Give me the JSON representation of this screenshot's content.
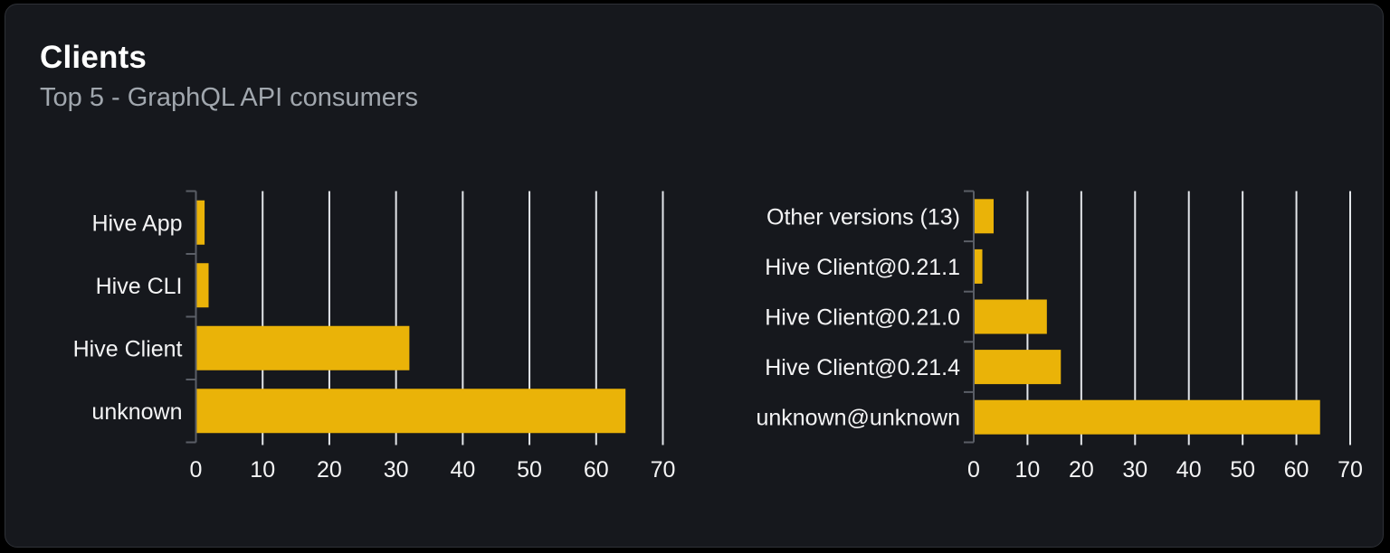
{
  "header": {
    "title": "Clients",
    "subtitle": "Top 5 - GraphQL API consumers"
  },
  "colors": {
    "bar": "#eab308",
    "grid": "#e3e6ea",
    "axis": "#5a5e66",
    "label": "#f4f4f5",
    "tick_label": "#f4f4f5",
    "title": "#ffffff",
    "subtitle": "#a1a7ae",
    "panel_bg": "#16181d",
    "panel_border": "#2e3137",
    "page_bg": "#000000"
  },
  "chart_data": [
    {
      "type": "bar",
      "orientation": "horizontal",
      "title": "",
      "categories": [
        "Hive App",
        "Hive CLI",
        "Hive Client",
        "unknown"
      ],
      "values": [
        1.3,
        1.9,
        32,
        64.4
      ],
      "xlabel": "",
      "ylabel": "",
      "xlim": [
        0,
        70
      ],
      "xticks": [
        0,
        10,
        20,
        30,
        40,
        50,
        60,
        70
      ],
      "grid": true,
      "legend": false
    },
    {
      "type": "bar",
      "orientation": "horizontal",
      "title": "",
      "categories": [
        "Other versions (13)",
        "Hive Client@0.21.1",
        "Hive Client@0.21.0",
        "Hive Client@0.21.4",
        "unknown@unknown"
      ],
      "values": [
        3.7,
        1.6,
        13.6,
        16.2,
        64.4
      ],
      "xlabel": "",
      "ylabel": "",
      "xlim": [
        0,
        70
      ],
      "xticks": [
        0,
        10,
        20,
        30,
        40,
        50,
        60,
        70
      ],
      "grid": true,
      "legend": false
    }
  ]
}
